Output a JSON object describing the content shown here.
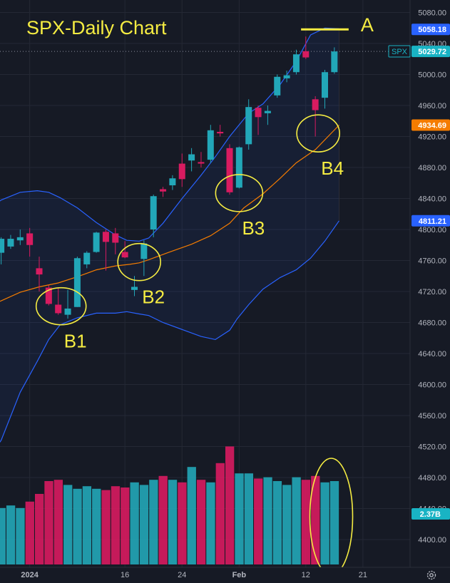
{
  "header": {
    "title": "SPX-Daily Chart"
  },
  "symbol": {
    "ticker": "SPX",
    "last": "5029.72"
  },
  "price_labels": [
    {
      "value": 5058.18,
      "text": "5058.18",
      "color": "#2962ff",
      "name": "price-label-a-level"
    },
    {
      "value": 5029.72,
      "text": "5029.72",
      "color": "#19b3c4",
      "name": "price-label-last"
    },
    {
      "value": 4934.69,
      "text": "4934.69",
      "color": "#f57c00",
      "name": "price-label-ma"
    },
    {
      "value": 4811.21,
      "text": "4811.21",
      "color": "#2962ff",
      "name": "price-label-lower-band"
    }
  ],
  "volume_label": {
    "text": "2.37B",
    "color": "#19b3c4"
  },
  "colors": {
    "up": "#22a7b8",
    "down": "#d81b60",
    "band": "#2962ff",
    "ma": "#f57c00",
    "annotation": "#f5ec42",
    "grid": "#242835",
    "axis_text": "#b2b5be"
  },
  "chart_data": {
    "type": "candlestick",
    "price_axis": {
      "ticks": [
        5080,
        5040,
        5000,
        4960,
        4920,
        4880,
        4840,
        4800,
        4760,
        4720,
        4680,
        4640,
        4600,
        4560,
        4520,
        4480,
        4440,
        4400
      ],
      "ylim": [
        4383,
        5088
      ]
    },
    "x_ticks": [
      {
        "label": "2024",
        "index": 3
      },
      {
        "label": "16",
        "index": 13
      },
      {
        "label": "24",
        "index": 19
      },
      {
        "label": "Feb",
        "index": 25
      },
      {
        "label": "12",
        "index": 32
      },
      {
        "label": "21",
        "index": 38
      }
    ],
    "candles": [
      {
        "o": 4770,
        "h": 4790,
        "l": 4755,
        "c": 4788,
        "v": 0.44
      },
      {
        "o": 4778,
        "h": 4793,
        "l": 4775,
        "c": 4788,
        "v": 0.46
      },
      {
        "o": 4786,
        "h": 4800,
        "l": 4780,
        "c": 4790,
        "v": 0.44
      },
      {
        "o": 4795,
        "h": 4802,
        "l": 4765,
        "c": 4780,
        "v": 0.49
      },
      {
        "o": 4750,
        "h": 4765,
        "l": 4720,
        "c": 4742,
        "v": 0.55
      },
      {
        "o": 4725,
        "h": 4728,
        "l": 4702,
        "c": 4704,
        "v": 0.65
      },
      {
        "o": 4703,
        "h": 4725,
        "l": 4690,
        "c": 4692,
        "v": 0.66
      },
      {
        "o": 4690,
        "h": 4722,
        "l": 4685,
        "c": 4698,
        "v": 0.62
      },
      {
        "o": 4700,
        "h": 4765,
        "l": 4700,
        "c": 4763,
        "v": 0.59
      },
      {
        "o": 4755,
        "h": 4772,
        "l": 4750,
        "c": 4770,
        "v": 0.61
      },
      {
        "o": 4771,
        "h": 4797,
        "l": 4770,
        "c": 4796,
        "v": 0.59
      },
      {
        "o": 4797,
        "h": 4800,
        "l": 4747,
        "c": 4784,
        "v": 0.58
      },
      {
        "o": 4795,
        "h": 4802,
        "l": 4768,
        "c": 4783,
        "v": 0.61
      },
      {
        "o": 4771,
        "h": 4785,
        "l": 4763,
        "c": 4764,
        "v": 0.6
      },
      {
        "o": 4722,
        "h": 4740,
        "l": 4714,
        "c": 4726,
        "v": 0.64
      },
      {
        "o": 4762,
        "h": 4786,
        "l": 4740,
        "c": 4782,
        "v": 0.62
      },
      {
        "o": 4800,
        "h": 4845,
        "l": 4790,
        "c": 4843,
        "v": 0.66
      },
      {
        "o": 4852,
        "h": 4855,
        "l": 4842,
        "c": 4849,
        "v": 0.69
      },
      {
        "o": 4857,
        "h": 4870,
        "l": 4851,
        "c": 4866,
        "v": 0.66
      },
      {
        "o": 4885,
        "h": 4898,
        "l": 4855,
        "c": 4865,
        "v": 0.64
      },
      {
        "o": 4889,
        "h": 4905,
        "l": 4875,
        "c": 4897,
        "v": 0.76
      },
      {
        "o": 4887,
        "h": 4900,
        "l": 4880,
        "c": 4885,
        "v": 0.66
      },
      {
        "o": 4890,
        "h": 4935,
        "l": 4886,
        "c": 4928,
        "v": 0.64
      },
      {
        "o": 4926,
        "h": 4935,
        "l": 4920,
        "c": 4924,
        "v": 0.79
      },
      {
        "o": 4905,
        "h": 4910,
        "l": 4845,
        "c": 4848,
        "v": 0.92
      },
      {
        "o": 4854,
        "h": 4907,
        "l": 4853,
        "c": 4906,
        "v": 0.71
      },
      {
        "o": 4910,
        "h": 4968,
        "l": 4903,
        "c": 4958,
        "v": 0.71
      },
      {
        "o": 4957,
        "h": 4960,
        "l": 4922,
        "c": 4945,
        "v": 0.67
      },
      {
        "o": 4950,
        "h": 4960,
        "l": 4935,
        "c": 4953,
        "v": 0.68
      },
      {
        "o": 4973,
        "h": 5000,
        "l": 4970,
        "c": 4997,
        "v": 0.65
      },
      {
        "o": 4995,
        "h": 5005,
        "l": 4990,
        "c": 4999,
        "v": 0.62
      },
      {
        "o": 5003,
        "h": 5032,
        "l": 5000,
        "c": 5026,
        "v": 0.68
      },
      {
        "o": 5030,
        "h": 5049,
        "l": 5020,
        "c": 5022,
        "v": 0.66
      },
      {
        "o": 4968,
        "h": 4972,
        "l": 4920,
        "c": 4954,
        "v": 0.69
      },
      {
        "o": 4970,
        "h": 5006,
        "l": 4956,
        "c": 5003,
        "v": 0.64
      },
      {
        "o": 5003,
        "h": 5035,
        "l": 5001,
        "c": 5029.72,
        "v": 0.65
      }
    ],
    "bands_x_index": [
      -8.5,
      -6,
      -4,
      -2,
      0,
      2,
      3.8,
      5,
      6.2,
      8,
      10,
      12,
      13.2,
      14.5,
      15.5,
      17,
      19,
      21,
      22.5,
      24,
      24.8,
      26,
      27.5,
      29.3,
      31,
      32.5,
      34,
      35.5
    ],
    "upper_band": [
      4728,
      4768,
      4802,
      4820,
      4838,
      4848,
      4850,
      4848,
      4841,
      4828,
      4809,
      4793,
      4786,
      4785,
      4789,
      4808,
      4840,
      4870,
      4894,
      4920,
      4932,
      4950,
      4962,
      4987,
      5017,
      5051,
      5060,
      5059
    ],
    "lower_band": [
      4405,
      4420,
      4456,
      4493,
      4528,
      4590,
      4630,
      4658,
      4677,
      4686,
      4692,
      4692,
      4694,
      4691,
      4689,
      4680,
      4671,
      4662,
      4658,
      4670,
      4685,
      4703,
      4723,
      4738,
      4748,
      4763,
      4785,
      4811.21
    ],
    "ma_x_index": [
      -8.5,
      -6,
      -4,
      -2,
      0,
      2,
      4,
      6,
      8,
      10,
      12,
      13.5,
      14.5,
      15.5,
      17.5,
      20,
      22,
      24,
      25.5,
      27.5,
      29.3,
      31,
      33,
      35.5
    ],
    "ma": [
      4665,
      4677,
      4688,
      4698,
      4708,
      4719,
      4726,
      4731,
      4739,
      4748,
      4753,
      4755,
      4757,
      4761,
      4770,
      4781,
      4792,
      4808,
      4828,
      4846,
      4866,
      4886,
      4903,
      4934.69
    ],
    "annotations": [
      {
        "text": "A",
        "kind": "hline",
        "value": 5058.18,
        "from_index": 31.5,
        "to_index": 36.5
      },
      {
        "text": "B1",
        "kind": "ellipse",
        "index": 6.3,
        "value": 4701,
        "rx": 35,
        "ry": 26
      },
      {
        "text": "B2",
        "kind": "ellipse",
        "index": 14.5,
        "value": 4758,
        "rx": 30,
        "ry": 26
      },
      {
        "text": "B3",
        "kind": "ellipse",
        "index": 25,
        "value": 4847,
        "rx": 33,
        "ry": 26
      },
      {
        "text": "B4",
        "kind": "ellipse",
        "index": 33.3,
        "value": 4924,
        "rx": 30,
        "ry": 26
      },
      {
        "text": "",
        "kind": "volume-ellipse",
        "index": 34.3,
        "rx": 30,
        "ry": 82
      }
    ]
  }
}
